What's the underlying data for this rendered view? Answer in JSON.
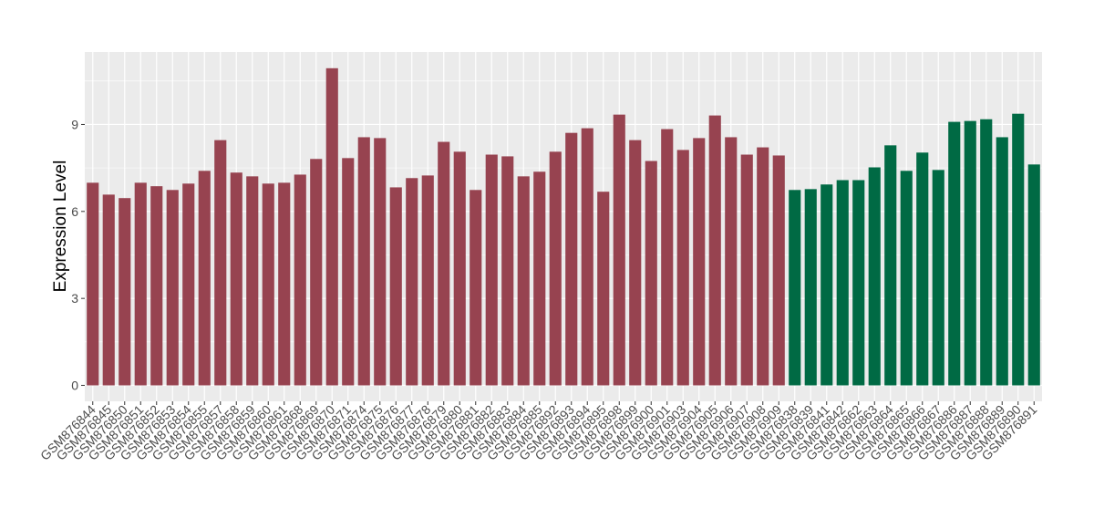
{
  "chart_data": {
    "type": "bar",
    "y_label": "Expression Level",
    "categories": [
      "GSM876844",
      "GSM876845",
      "GSM876850",
      "GSM876851",
      "GSM876852",
      "GSM876853",
      "GSM876854",
      "GSM876855",
      "GSM876857",
      "GSM876858",
      "GSM876859",
      "GSM876860",
      "GSM876861",
      "GSM876868",
      "GSM876869",
      "GSM876870",
      "GSM876871",
      "GSM876874",
      "GSM876875",
      "GSM876876",
      "GSM876877",
      "GSM876878",
      "GSM876879",
      "GSM876880",
      "GSM876881",
      "GSM876882",
      "GSM876883",
      "GSM876884",
      "GSM876885",
      "GSM876892",
      "GSM876893",
      "GSM876894",
      "GSM876895",
      "GSM876898",
      "GSM876899",
      "GSM876900",
      "GSM876901",
      "GSM876903",
      "GSM876904",
      "GSM876905",
      "GSM876906",
      "GSM876907",
      "GSM876908",
      "GSM876909",
      "GSM876838",
      "GSM876839",
      "GSM876841",
      "GSM876842",
      "GSM876862",
      "GSM876863",
      "GSM876864",
      "GSM876865",
      "GSM876866",
      "GSM876867",
      "GSM876886",
      "GSM876887",
      "GSM876888",
      "GSM876889",
      "GSM876890",
      "GSM876891"
    ],
    "values": [
      6.99,
      6.58,
      6.46,
      6.99,
      6.87,
      6.74,
      6.96,
      7.4,
      8.46,
      7.34,
      7.21,
      6.96,
      6.99,
      7.27,
      7.81,
      10.94,
      7.84,
      8.56,
      8.53,
      6.83,
      7.15,
      7.24,
      8.4,
      8.06,
      6.74,
      7.96,
      7.9,
      7.21,
      7.37,
      8.06,
      8.71,
      8.87,
      6.68,
      9.34,
      8.46,
      7.74,
      8.84,
      8.12,
      8.53,
      9.31,
      8.56,
      7.96,
      8.21,
      7.93,
      6.74,
      6.77,
      6.93,
      7.08,
      7.08,
      7.52,
      8.28,
      7.4,
      8.03,
      7.43,
      9.09,
      9.12,
      9.18,
      8.56,
      9.37,
      7.62
    ],
    "colors": [
      "#974350",
      "#974350",
      "#974350",
      "#974350",
      "#974350",
      "#974350",
      "#974350",
      "#974350",
      "#974350",
      "#974350",
      "#974350",
      "#974350",
      "#974350",
      "#974350",
      "#974350",
      "#974350",
      "#974350",
      "#974350",
      "#974350",
      "#974350",
      "#974350",
      "#974350",
      "#974350",
      "#974350",
      "#974350",
      "#974350",
      "#974350",
      "#974350",
      "#974350",
      "#974350",
      "#974350",
      "#974350",
      "#974350",
      "#974350",
      "#974350",
      "#974350",
      "#974350",
      "#974350",
      "#974350",
      "#974350",
      "#974350",
      "#974350",
      "#974350",
      "#974350",
      "#006a44",
      "#006a44",
      "#006a44",
      "#006a44",
      "#006a44",
      "#006a44",
      "#006a44",
      "#006a44",
      "#006a44",
      "#006a44",
      "#006a44",
      "#006a44",
      "#006a44",
      "#006a44",
      "#006a44",
      "#006a44"
    ],
    "ylim": [
      -0.55,
      11.5
    ],
    "yticks": [
      0,
      3,
      6,
      9
    ],
    "grid": true
  }
}
